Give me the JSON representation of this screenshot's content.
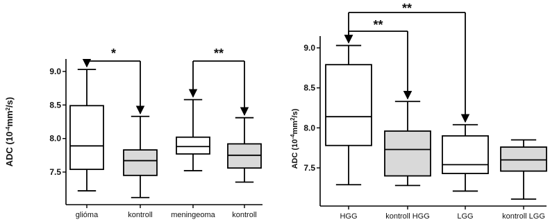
{
  "colors": {
    "box_plain": "#ffffff",
    "box_control": "#d9d9d9",
    "ink": "#000000"
  },
  "chart_data": [
    {
      "type": "boxplot",
      "ylabel": "ADC (10<sup>-4</sup>mm<sup>2</sup>/s)",
      "ylabel_text": {
        "main": "ADC (10",
        "exp1": "-4",
        "mid": "mm",
        "exp2": "2",
        "end": "/s)"
      },
      "ylim": [
        7.1,
        9.2
      ],
      "yticks": [
        "7.5",
        "8.0",
        "8.5",
        "9.0"
      ],
      "categories": [
        "glióma",
        "kontroll",
        "meningeoma",
        "kontroll"
      ],
      "boxes": [
        {
          "min": 7.22,
          "q1": 7.54,
          "median": 7.89,
          "q3": 8.49,
          "max": 9.03,
          "fill": "plain"
        },
        {
          "min": 7.12,
          "q1": 7.45,
          "median": 7.67,
          "q3": 7.83,
          "max": 8.33,
          "fill": "control"
        },
        {
          "min": 7.52,
          "q1": 7.77,
          "median": 7.88,
          "q3": 8.02,
          "max": 8.58,
          "fill": "plain"
        },
        {
          "min": 7.35,
          "q1": 7.56,
          "median": 7.75,
          "q3": 7.92,
          "max": 8.31,
          "fill": "control"
        }
      ],
      "comparisons": [
        {
          "from": 0,
          "to": 1,
          "label": "*"
        },
        {
          "from": 2,
          "to": 3,
          "label": "**"
        }
      ]
    },
    {
      "type": "boxplot",
      "ylabel_text": {
        "main": "ADC (10",
        "exp1": "-4",
        "mid": "mm",
        "exp2": "2",
        "end": "/s)"
      },
      "ylim": [
        7.0,
        9.3
      ],
      "yticks": [
        "7.5",
        "8.0",
        "8.5",
        "9.0"
      ],
      "categories": [
        "HGG",
        "kontroll HGG",
        "LGG",
        "kontroll LGG"
      ],
      "boxes": [
        {
          "min": 7.29,
          "q1": 7.78,
          "median": 8.14,
          "q3": 8.79,
          "max": 9.03,
          "fill": "plain"
        },
        {
          "min": 7.28,
          "q1": 7.4,
          "median": 7.73,
          "q3": 7.96,
          "max": 8.33,
          "fill": "control"
        },
        {
          "min": 7.21,
          "q1": 7.43,
          "median": 7.54,
          "q3": 7.9,
          "max": 8.04,
          "fill": "plain"
        },
        {
          "min": 7.11,
          "q1": 7.46,
          "median": 7.6,
          "q3": 7.76,
          "max": 7.85,
          "fill": "control"
        }
      ],
      "comparisons": [
        {
          "from": 0,
          "to": 1,
          "label": "**"
        },
        {
          "from": 0,
          "to": 2,
          "label": "**"
        }
      ]
    }
  ]
}
